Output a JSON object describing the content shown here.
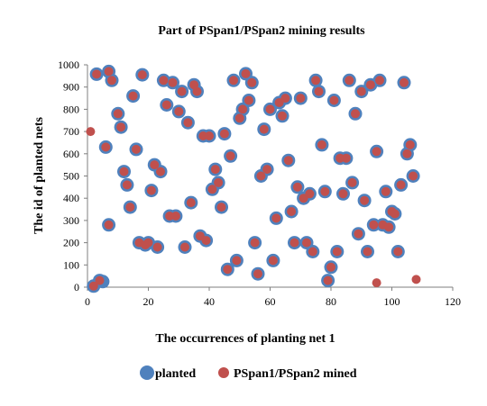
{
  "chart_data": {
    "type": "scatter",
    "title": "Part of  PSpan1/PSpan2 mining results",
    "xlabel": "The occurrences of planting net 1",
    "ylabel": "The id of planted nets",
    "xlim": [
      0,
      120
    ],
    "ylim": [
      0,
      1000
    ],
    "x_ticks": [
      "0",
      "20",
      "40",
      "60",
      "80",
      "100",
      "120"
    ],
    "y_ticks": [
      "0",
      "100",
      "200",
      "300",
      "400",
      "500",
      "600",
      "700",
      "800",
      "900",
      "1000"
    ],
    "legend_position": "bottom",
    "grid": false,
    "series": [
      {
        "name": "planted",
        "color": "#4F81BD",
        "marker": "large-circle",
        "points": [
          [
            2,
            5
          ],
          [
            4,
            30
          ],
          [
            5,
            25
          ],
          [
            3,
            958
          ],
          [
            7,
            970
          ],
          [
            8,
            930
          ],
          [
            6,
            630
          ],
          [
            7,
            280
          ],
          [
            10,
            780
          ],
          [
            11,
            720
          ],
          [
            12,
            520
          ],
          [
            13,
            460
          ],
          [
            14,
            360
          ],
          [
            15,
            860
          ],
          [
            16,
            620
          ],
          [
            17,
            200
          ],
          [
            19,
            190
          ],
          [
            20,
            200
          ],
          [
            18,
            955
          ],
          [
            21,
            435
          ],
          [
            22,
            550
          ],
          [
            23,
            180
          ],
          [
            24,
            520
          ],
          [
            25,
            930
          ],
          [
            26,
            820
          ],
          [
            27,
            320
          ],
          [
            28,
            920
          ],
          [
            29,
            320
          ],
          [
            30,
            790
          ],
          [
            31,
            880
          ],
          [
            32,
            180
          ],
          [
            33,
            740
          ],
          [
            34,
            380
          ],
          [
            35,
            910
          ],
          [
            36,
            880
          ],
          [
            37,
            230
          ],
          [
            38,
            680
          ],
          [
            39,
            210
          ],
          [
            40,
            680
          ],
          [
            41,
            440
          ],
          [
            42,
            530
          ],
          [
            43,
            470
          ],
          [
            44,
            360
          ],
          [
            45,
            690
          ],
          [
            46,
            80
          ],
          [
            47,
            590
          ],
          [
            48,
            930
          ],
          [
            49,
            120
          ],
          [
            50,
            760
          ],
          [
            51,
            800
          ],
          [
            52,
            960
          ],
          [
            53,
            840
          ],
          [
            54,
            920
          ],
          [
            55,
            200
          ],
          [
            56,
            60
          ],
          [
            57,
            500
          ],
          [
            58,
            710
          ],
          [
            59,
            530
          ],
          [
            60,
            800
          ],
          [
            61,
            120
          ],
          [
            62,
            310
          ],
          [
            63,
            830
          ],
          [
            64,
            770
          ],
          [
            65,
            850
          ],
          [
            66,
            570
          ],
          [
            67,
            340
          ],
          [
            68,
            200
          ],
          [
            69,
            450
          ],
          [
            70,
            850
          ],
          [
            71,
            400
          ],
          [
            72,
            200
          ],
          [
            73,
            420
          ],
          [
            74,
            160
          ],
          [
            75,
            930
          ],
          [
            76,
            880
          ],
          [
            77,
            640
          ],
          [
            78,
            430
          ],
          [
            79,
            30
          ],
          [
            80,
            90
          ],
          [
            81,
            840
          ],
          [
            82,
            160
          ],
          [
            83,
            580
          ],
          [
            84,
            420
          ],
          [
            85,
            580
          ],
          [
            86,
            930
          ],
          [
            87,
            470
          ],
          [
            88,
            780
          ],
          [
            89,
            240
          ],
          [
            90,
            880
          ],
          [
            91,
            390
          ],
          [
            92,
            160
          ],
          [
            93,
            910
          ],
          [
            94,
            280
          ],
          [
            95,
            610
          ],
          [
            96,
            930
          ],
          [
            97,
            280
          ],
          [
            98,
            430
          ],
          [
            99,
            270
          ],
          [
            100,
            340
          ],
          [
            101,
            330
          ],
          [
            102,
            160
          ],
          [
            103,
            460
          ],
          [
            104,
            920
          ],
          [
            105,
            600
          ],
          [
            106,
            640
          ],
          [
            107,
            500
          ]
        ]
      },
      {
        "name": "PSpan1/PSpan2 mined",
        "color": "#C0504D",
        "marker": "small-circle",
        "points": [
          [
            1,
            700
          ],
          [
            2,
            5
          ],
          [
            4,
            30
          ],
          [
            3,
            958
          ],
          [
            7,
            970
          ],
          [
            8,
            930
          ],
          [
            6,
            630
          ],
          [
            7,
            280
          ],
          [
            10,
            780
          ],
          [
            11,
            720
          ],
          [
            12,
            520
          ],
          [
            13,
            460
          ],
          [
            14,
            360
          ],
          [
            15,
            860
          ],
          [
            16,
            620
          ],
          [
            17,
            200
          ],
          [
            19,
            190
          ],
          [
            20,
            200
          ],
          [
            18,
            955
          ],
          [
            21,
            435
          ],
          [
            22,
            550
          ],
          [
            23,
            180
          ],
          [
            24,
            520
          ],
          [
            25,
            930
          ],
          [
            26,
            820
          ],
          [
            27,
            320
          ],
          [
            28,
            920
          ],
          [
            29,
            320
          ],
          [
            30,
            790
          ],
          [
            31,
            880
          ],
          [
            32,
            180
          ],
          [
            33,
            740
          ],
          [
            34,
            380
          ],
          [
            35,
            910
          ],
          [
            36,
            880
          ],
          [
            37,
            230
          ],
          [
            38,
            680
          ],
          [
            39,
            210
          ],
          [
            40,
            680
          ],
          [
            41,
            440
          ],
          [
            42,
            530
          ],
          [
            43,
            470
          ],
          [
            44,
            360
          ],
          [
            45,
            690
          ],
          [
            46,
            80
          ],
          [
            47,
            590
          ],
          [
            48,
            930
          ],
          [
            49,
            120
          ],
          [
            50,
            760
          ],
          [
            51,
            800
          ],
          [
            52,
            960
          ],
          [
            53,
            840
          ],
          [
            54,
            920
          ],
          [
            55,
            200
          ],
          [
            56,
            60
          ],
          [
            57,
            500
          ],
          [
            58,
            710
          ],
          [
            59,
            530
          ],
          [
            60,
            800
          ],
          [
            61,
            120
          ],
          [
            62,
            310
          ],
          [
            63,
            830
          ],
          [
            64,
            770
          ],
          [
            65,
            850
          ],
          [
            66,
            570
          ],
          [
            67,
            340
          ],
          [
            68,
            200
          ],
          [
            69,
            450
          ],
          [
            70,
            850
          ],
          [
            71,
            400
          ],
          [
            72,
            200
          ],
          [
            73,
            420
          ],
          [
            74,
            160
          ],
          [
            75,
            930
          ],
          [
            76,
            880
          ],
          [
            77,
            640
          ],
          [
            78,
            430
          ],
          [
            79,
            30
          ],
          [
            80,
            90
          ],
          [
            81,
            840
          ],
          [
            82,
            160
          ],
          [
            83,
            580
          ],
          [
            84,
            420
          ],
          [
            85,
            580
          ],
          [
            86,
            930
          ],
          [
            87,
            470
          ],
          [
            88,
            780
          ],
          [
            89,
            240
          ],
          [
            90,
            880
          ],
          [
            91,
            390
          ],
          [
            92,
            160
          ],
          [
            93,
            910
          ],
          [
            94,
            280
          ],
          [
            95,
            610
          ],
          [
            96,
            930
          ],
          [
            97,
            280
          ],
          [
            98,
            430
          ],
          [
            99,
            270
          ],
          [
            100,
            340
          ],
          [
            101,
            330
          ],
          [
            102,
            160
          ],
          [
            103,
            460
          ],
          [
            104,
            920
          ],
          [
            105,
            600
          ],
          [
            106,
            640
          ],
          [
            107,
            500
          ],
          [
            95,
            20
          ],
          [
            108,
            35
          ]
        ]
      }
    ]
  }
}
